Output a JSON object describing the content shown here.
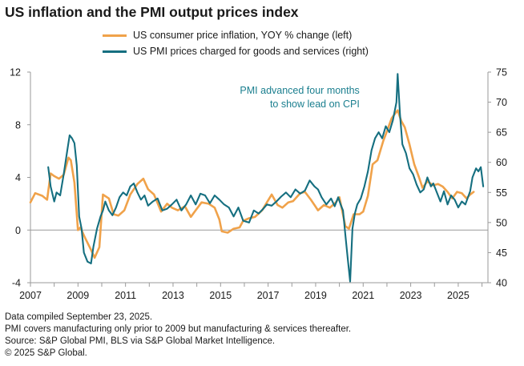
{
  "title": "US inflation and the PMI output prices index",
  "footer": [
    "Data compiled September 23, 2025.",
    "PMI covers manufacturing only prior to 2009 but manufacturing & services thereafter.",
    "Source: S&P Global PMI, BLS via S&P Global Market Intelligence.",
    "© 2025 S&P Global."
  ],
  "chart_data": {
    "type": "line",
    "title": "US inflation and the PMI output prices index",
    "xlim": [
      2007.0,
      2026.25
    ],
    "x_ticks": [
      "2007",
      "2009",
      "2011",
      "2013",
      "2015",
      "2017",
      "2019",
      "2021",
      "2023",
      "2025"
    ],
    "y_left": {
      "lim": [
        -4,
        12
      ],
      "ticks": [
        "-4",
        "0",
        "4",
        "8",
        "12"
      ]
    },
    "y_right": {
      "lim": [
        40,
        75
      ],
      "ticks": [
        "40",
        "45",
        "50",
        "55",
        "60",
        "65",
        "70",
        "75"
      ]
    },
    "grid": false,
    "legend_position": "top-center",
    "annotation": {
      "lines": [
        "PMI advanced four months",
        "to show lead on CPI"
      ],
      "x": 2020.85,
      "y_left": 10.6,
      "color": "#1b7f8f"
    },
    "series": [
      {
        "name": "US consumer price inflation, YOY % change (left)",
        "axis": "left",
        "color": "#f0a24a",
        "points": [
          [
            2007.0,
            2.1
          ],
          [
            2007.2,
            2.8
          ],
          [
            2007.5,
            2.6
          ],
          [
            2007.7,
            2.3
          ],
          [
            2007.85,
            4.3
          ],
          [
            2008.0,
            4.1
          ],
          [
            2008.2,
            3.9
          ],
          [
            2008.4,
            4.2
          ],
          [
            2008.6,
            5.5
          ],
          [
            2008.7,
            5.3
          ],
          [
            2008.85,
            3.6
          ],
          [
            2009.0,
            0.0
          ],
          [
            2009.1,
            0.2
          ],
          [
            2009.3,
            -0.6
          ],
          [
            2009.55,
            -1.5
          ],
          [
            2009.7,
            -2.1
          ],
          [
            2009.9,
            -1.3
          ],
          [
            2010.05,
            2.7
          ],
          [
            2010.3,
            2.4
          ],
          [
            2010.5,
            1.2
          ],
          [
            2010.7,
            1.1
          ],
          [
            2010.95,
            1.5
          ],
          [
            2011.2,
            2.7
          ],
          [
            2011.5,
            3.5
          ],
          [
            2011.75,
            3.9
          ],
          [
            2011.95,
            3.1
          ],
          [
            2012.2,
            2.7
          ],
          [
            2012.5,
            1.4
          ],
          [
            2012.75,
            2.0
          ],
          [
            2012.95,
            1.7
          ],
          [
            2013.2,
            1.5
          ],
          [
            2013.5,
            1.8
          ],
          [
            2013.75,
            1.0
          ],
          [
            2013.95,
            1.5
          ],
          [
            2014.2,
            2.1
          ],
          [
            2014.5,
            2.0
          ],
          [
            2014.75,
            1.7
          ],
          [
            2014.95,
            0.8
          ],
          [
            2015.05,
            -0.1
          ],
          [
            2015.3,
            -0.2
          ],
          [
            2015.55,
            0.1
          ],
          [
            2015.8,
            0.2
          ],
          [
            2015.95,
            0.7
          ],
          [
            2016.2,
            0.9
          ],
          [
            2016.45,
            1.0
          ],
          [
            2016.75,
            1.5
          ],
          [
            2016.95,
            2.1
          ],
          [
            2017.15,
            2.7
          ],
          [
            2017.4,
            1.9
          ],
          [
            2017.6,
            1.7
          ],
          [
            2017.85,
            2.1
          ],
          [
            2018.05,
            2.2
          ],
          [
            2018.35,
            2.8
          ],
          [
            2018.55,
            2.9
          ],
          [
            2018.8,
            2.3
          ],
          [
            2018.95,
            1.9
          ],
          [
            2019.1,
            1.5
          ],
          [
            2019.35,
            1.9
          ],
          [
            2019.6,
            1.7
          ],
          [
            2019.85,
            2.1
          ],
          [
            2020.0,
            2.5
          ],
          [
            2020.25,
            0.3
          ],
          [
            2020.4,
            0.1
          ],
          [
            2020.6,
            1.2
          ],
          [
            2020.85,
            1.2
          ],
          [
            2021.0,
            1.4
          ],
          [
            2021.2,
            2.6
          ],
          [
            2021.4,
            5.0
          ],
          [
            2021.6,
            5.3
          ],
          [
            2021.85,
            6.8
          ],
          [
            2022.0,
            7.5
          ],
          [
            2022.2,
            8.5
          ],
          [
            2022.45,
            9.1
          ],
          [
            2022.6,
            8.3
          ],
          [
            2022.75,
            7.8
          ],
          [
            2022.95,
            6.5
          ],
          [
            2023.15,
            5.0
          ],
          [
            2023.35,
            4.0
          ],
          [
            2023.5,
            3.2
          ],
          [
            2023.7,
            3.7
          ],
          [
            2023.95,
            3.4
          ],
          [
            2024.15,
            3.5
          ],
          [
            2024.35,
            3.3
          ],
          [
            2024.55,
            2.9
          ],
          [
            2024.75,
            2.4
          ],
          [
            2024.95,
            2.9
          ],
          [
            2025.15,
            2.8
          ],
          [
            2025.35,
            2.4
          ],
          [
            2025.5,
            2.7
          ],
          [
            2025.65,
            2.9
          ]
        ]
      },
      {
        "name": "US PMI prices charged for goods and services (right)",
        "axis": "right",
        "color": "#156f80",
        "points": [
          [
            2007.75,
            59.2
          ],
          [
            2007.85,
            56.0
          ],
          [
            2008.0,
            53.5
          ],
          [
            2008.1,
            55.0
          ],
          [
            2008.25,
            54.5
          ],
          [
            2008.4,
            58.0
          ],
          [
            2008.55,
            62.0
          ],
          [
            2008.65,
            64.5
          ],
          [
            2008.75,
            64.0
          ],
          [
            2008.85,
            63.2
          ],
          [
            2008.95,
            59.5
          ],
          [
            2009.05,
            51.0
          ],
          [
            2009.15,
            49.0
          ],
          [
            2009.25,
            45.0
          ],
          [
            2009.4,
            43.5
          ],
          [
            2009.55,
            43.2
          ],
          [
            2009.65,
            46.0
          ],
          [
            2009.8,
            49.0
          ],
          [
            2009.95,
            51.0
          ],
          [
            2010.05,
            52.0
          ],
          [
            2010.15,
            53.5
          ],
          [
            2010.3,
            52.0
          ],
          [
            2010.45,
            51.2
          ],
          [
            2010.6,
            52.5
          ],
          [
            2010.75,
            54.2
          ],
          [
            2010.9,
            55.0
          ],
          [
            2011.05,
            54.5
          ],
          [
            2011.2,
            56.0
          ],
          [
            2011.35,
            56.5
          ],
          [
            2011.5,
            55.0
          ],
          [
            2011.65,
            53.8
          ],
          [
            2011.8,
            54.5
          ],
          [
            2011.95,
            52.8
          ],
          [
            2012.15,
            53.5
          ],
          [
            2012.35,
            54.0
          ],
          [
            2012.55,
            52.0
          ],
          [
            2012.75,
            52.3
          ],
          [
            2012.95,
            53.0
          ],
          [
            2013.15,
            53.8
          ],
          [
            2013.35,
            52.0
          ],
          [
            2013.55,
            53.0
          ],
          [
            2013.75,
            54.5
          ],
          [
            2013.95,
            53.0
          ],
          [
            2014.15,
            54.8
          ],
          [
            2014.35,
            54.5
          ],
          [
            2014.55,
            53.2
          ],
          [
            2014.75,
            54.5
          ],
          [
            2014.95,
            53.8
          ],
          [
            2015.15,
            53.0
          ],
          [
            2015.35,
            52.5
          ],
          [
            2015.55,
            51.0
          ],
          [
            2015.75,
            52.5
          ],
          [
            2015.95,
            50.3
          ],
          [
            2016.2,
            50.0
          ],
          [
            2016.4,
            52.0
          ],
          [
            2016.6,
            51.5
          ],
          [
            2016.8,
            52.3
          ],
          [
            2016.95,
            53.0
          ],
          [
            2017.15,
            52.8
          ],
          [
            2017.35,
            53.5
          ],
          [
            2017.55,
            54.3
          ],
          [
            2017.75,
            55.0
          ],
          [
            2017.95,
            54.2
          ],
          [
            2018.15,
            55.5
          ],
          [
            2018.35,
            54.8
          ],
          [
            2018.55,
            55.3
          ],
          [
            2018.75,
            57.0
          ],
          [
            2018.95,
            56.0
          ],
          [
            2019.1,
            55.5
          ],
          [
            2019.25,
            54.2
          ],
          [
            2019.45,
            53.0
          ],
          [
            2019.65,
            54.0
          ],
          [
            2019.8,
            52.7
          ],
          [
            2019.95,
            54.2
          ],
          [
            2020.05,
            53.0
          ],
          [
            2020.15,
            52.0
          ],
          [
            2020.25,
            48.0
          ],
          [
            2020.35,
            44.0
          ],
          [
            2020.45,
            40.2
          ],
          [
            2020.55,
            49.0
          ],
          [
            2020.65,
            51.5
          ],
          [
            2020.75,
            53.0
          ],
          [
            2020.9,
            54.0
          ],
          [
            2021.05,
            56.0
          ],
          [
            2021.2,
            58.5
          ],
          [
            2021.35,
            62.0
          ],
          [
            2021.5,
            64.0
          ],
          [
            2021.65,
            65.0
          ],
          [
            2021.8,
            64.0
          ],
          [
            2021.95,
            66.0
          ],
          [
            2022.1,
            65.0
          ],
          [
            2022.25,
            67.0
          ],
          [
            2022.4,
            70.0
          ],
          [
            2022.45,
            74.7
          ],
          [
            2022.55,
            68.0
          ],
          [
            2022.65,
            63.0
          ],
          [
            2022.8,
            61.5
          ],
          [
            2022.95,
            59.0
          ],
          [
            2023.1,
            58.0
          ],
          [
            2023.25,
            56.3
          ],
          [
            2023.4,
            55.0
          ],
          [
            2023.55,
            55.5
          ],
          [
            2023.7,
            57.5
          ],
          [
            2023.85,
            56.0
          ],
          [
            2023.95,
            56.5
          ],
          [
            2024.1,
            55.0
          ],
          [
            2024.25,
            53.5
          ],
          [
            2024.4,
            55.2
          ],
          [
            2024.55,
            53.0
          ],
          [
            2024.7,
            54.5
          ],
          [
            2024.85,
            53.8
          ],
          [
            2025.0,
            52.5
          ],
          [
            2025.15,
            53.5
          ],
          [
            2025.3,
            53.0
          ],
          [
            2025.5,
            55.2
          ],
          [
            2025.6,
            57.5
          ],
          [
            2025.75,
            59.0
          ],
          [
            2025.85,
            58.5
          ],
          [
            2025.95,
            59.2
          ],
          [
            2026.05,
            56.0
          ]
        ]
      }
    ]
  }
}
